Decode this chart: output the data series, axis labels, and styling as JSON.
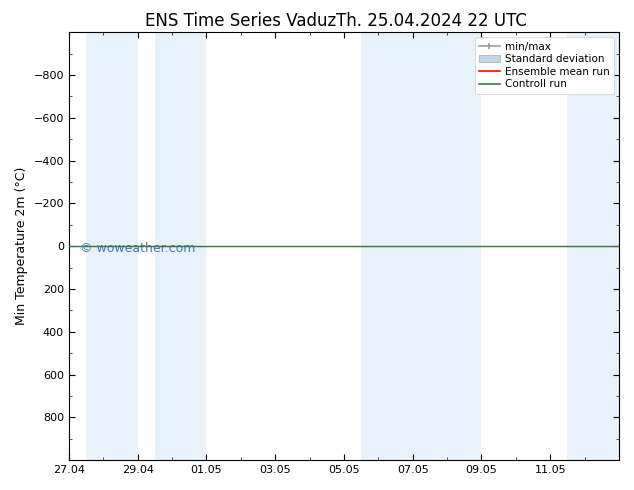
{
  "title": "ENS Time Series Vaduz",
  "title2": "Th. 25.04.2024 22 UTC",
  "ylabel": "Min Temperature 2m (°C)",
  "watermark": "© woweather.com",
  "ylim_bottom": -1000,
  "ylim_top": 1000,
  "yticks": [
    -800,
    -600,
    -400,
    -200,
    0,
    200,
    400,
    600,
    800
  ],
  "xtick_labels": [
    "27.04",
    "29.04",
    "01.05",
    "03.05",
    "05.05",
    "07.05",
    "09.05",
    "11.05"
  ],
  "xtick_positions": [
    0,
    2,
    4,
    6,
    8,
    10,
    12,
    14
  ],
  "xlim": [
    0,
    16
  ],
  "bg_color": "#ffffff",
  "plot_bg_color": "#ffffff",
  "shade_color": "#d6e8f7",
  "shade_alpha": 0.55,
  "shade_bands": [
    [
      0.5,
      2.0
    ],
    [
      2.5,
      4.0
    ],
    [
      8.5,
      10.5
    ],
    [
      10.5,
      12.0
    ],
    [
      14.5,
      16.0
    ]
  ],
  "flat_line_y": 0,
  "ensemble_mean_color": "#ff0000",
  "control_run_color": "#3a7d44",
  "minmax_color": "#999999",
  "stddev_color": "#c0d8e8",
  "legend_labels": [
    "min/max",
    "Standard deviation",
    "Ensemble mean run",
    "Controll run"
  ],
  "legend_colors": [
    "#999999",
    "#c0d8e8",
    "#ff0000",
    "#3a7d44"
  ],
  "font_family": "DejaVu Sans",
  "title_fontsize": 12,
  "axis_fontsize": 9,
  "tick_fontsize": 8,
  "watermark_color": "#4477bb",
  "watermark_fontsize": 9,
  "invert_yaxis": true
}
